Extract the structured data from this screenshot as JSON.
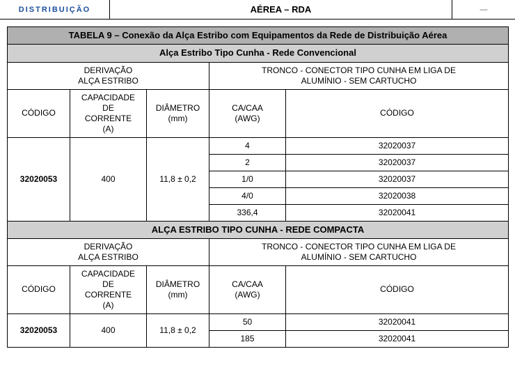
{
  "top": {
    "left": "DISTRIBUIÇÃO",
    "center": "AÉREA – RDA",
    "right": "—"
  },
  "table": {
    "title": "TABELA 9 – Conexão da Alça Estribo com Equipamentos da Rede de Distribuição Aérea",
    "section1_title": "Alça Estribo Tipo Cunha - Rede Convencional",
    "derivacao_label": "DERIVAÇÃO\nALÇA ESTRIBO",
    "tronco_label": "TRONCO - CONECTOR TIPO CUNHA EM LIGA DE\nALUMÍNIO - SEM CARTUCHO",
    "col_codigo": "CÓDIGO",
    "col_capacidade": "CAPACIDADE\nDE\nCORRENTE\n(A)",
    "col_diametro": "DIÂMETRO\n(mm)",
    "col_awg": "CA/CAA\n(AWG)",
    "col_codigo2": "CÓDIGO",
    "s1": {
      "codigo": "32020053",
      "capacidade": "400",
      "diametro": "11,8 ± 0,2",
      "rows": [
        {
          "awg": "4",
          "codigo": "32020037"
        },
        {
          "awg": "2",
          "codigo": "32020037"
        },
        {
          "awg": "1/0",
          "codigo": "32020037"
        },
        {
          "awg": "4/0",
          "codigo": "32020038"
        },
        {
          "awg": "336,4",
          "codigo": "32020041"
        }
      ]
    },
    "section2_title": "ALÇA ESTRIBO  TIPO CUNHA - REDE COMPACTA",
    "s2": {
      "codigo": "32020053",
      "capacidade": "400",
      "diametro": "11,8 ± 0,2",
      "rows": [
        {
          "awg": "50",
          "codigo": "32020041"
        },
        {
          "awg": "185",
          "codigo": "32020041"
        }
      ]
    }
  }
}
